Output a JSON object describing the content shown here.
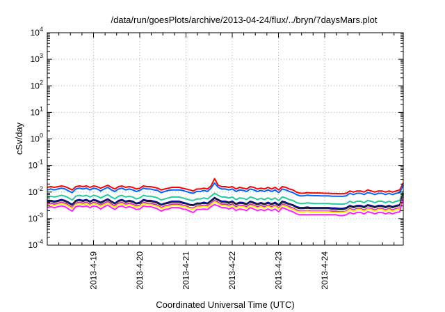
{
  "chart_data": {
    "type": "line",
    "title": "/data/run/goesPlots/archive/2013-04-24/flux/../bryn/7daysMars.plot",
    "xlabel": "Coordinated Universal Time (UTC)",
    "ylabel": "cSv/day",
    "yscale": "log",
    "ylim": [
      0.0001,
      10000
    ],
    "y_ticks": [
      {
        "base": "10",
        "exp": "-4"
      },
      {
        "base": "10",
        "exp": "-3"
      },
      {
        "base": "10",
        "exp": "-2"
      },
      {
        "base": "10",
        "exp": "-1"
      },
      {
        "base": "10",
        "exp": "0"
      },
      {
        "base": "10",
        "exp": "1"
      },
      {
        "base": "10",
        "exp": "2"
      },
      {
        "base": "10",
        "exp": "3"
      },
      {
        "base": "10",
        "exp": "4"
      }
    ],
    "xlim_days": [
      0,
      7.7
    ],
    "x_ticks": [
      {
        "label": "2013-4-19",
        "day": 1
      },
      {
        "label": "2013-4-20",
        "day": 2
      },
      {
        "label": "2013-4-21",
        "day": 3
      },
      {
        "label": "2013-4-22",
        "day": 4
      },
      {
        "label": "2013-4-23",
        "day": 5
      },
      {
        "label": "2013-4-24",
        "day": 6
      }
    ],
    "grid": true,
    "series": [
      {
        "color": "#ff0000",
        "values": [
          0.015,
          0.016,
          0.015,
          0.016,
          0.017,
          0.016,
          0.014,
          0.012,
          0.016,
          0.017,
          0.016,
          0.017,
          0.015,
          0.017,
          0.016,
          0.014,
          0.016,
          0.018,
          0.015,
          0.013,
          0.016,
          0.017,
          0.015,
          0.016,
          0.015,
          0.013,
          0.014,
          0.017,
          0.016,
          0.016,
          0.015,
          0.014,
          0.012,
          0.013,
          0.014,
          0.015,
          0.015,
          0.015,
          0.014,
          0.013,
          0.012,
          0.011,
          0.013,
          0.013,
          0.014,
          0.013,
          0.017,
          0.032,
          0.018,
          0.016,
          0.016,
          0.015,
          0.016,
          0.013,
          0.015,
          0.014,
          0.013,
          0.016,
          0.015,
          0.013,
          0.014,
          0.013,
          0.015,
          0.013,
          0.015,
          0.012,
          0.016,
          0.015,
          0.013,
          0.012,
          0.01,
          0.009,
          0.009,
          0.0095,
          0.0093,
          0.0092,
          0.0092,
          0.0091,
          0.009,
          0.009,
          0.0088,
          0.0088,
          0.0087,
          0.0087,
          0.009,
          0.011,
          0.01,
          0.011,
          0.011,
          0.01,
          0.012,
          0.011,
          0.01,
          0.011,
          0.011,
          0.01,
          0.011,
          0.01,
          0.011,
          0.012,
          0.022
        ]
      },
      {
        "color": "#0066ff",
        "values": [
          0.012,
          0.013,
          0.012,
          0.013,
          0.014,
          0.013,
          0.011,
          0.0095,
          0.013,
          0.014,
          0.013,
          0.014,
          0.012,
          0.014,
          0.013,
          0.011,
          0.013,
          0.015,
          0.012,
          0.0105,
          0.013,
          0.014,
          0.012,
          0.013,
          0.012,
          0.0105,
          0.0115,
          0.014,
          0.013,
          0.013,
          0.012,
          0.0115,
          0.0095,
          0.0105,
          0.0115,
          0.012,
          0.012,
          0.012,
          0.0115,
          0.0105,
          0.0095,
          0.009,
          0.0105,
          0.0105,
          0.0115,
          0.0105,
          0.014,
          0.022,
          0.015,
          0.013,
          0.013,
          0.012,
          0.013,
          0.0105,
          0.012,
          0.0115,
          0.0105,
          0.013,
          0.012,
          0.0105,
          0.0115,
          0.0105,
          0.012,
          0.0105,
          0.012,
          0.0095,
          0.013,
          0.012,
          0.0105,
          0.0095,
          0.008,
          0.0072,
          0.0072,
          0.0076,
          0.0074,
          0.0073,
          0.0073,
          0.0072,
          0.0072,
          0.0072,
          0.007,
          0.007,
          0.0069,
          0.0069,
          0.0072,
          0.009,
          0.008,
          0.009,
          0.009,
          0.008,
          0.0095,
          0.009,
          0.008,
          0.009,
          0.009,
          0.008,
          0.009,
          0.008,
          0.009,
          0.0095,
          0.018
        ]
      },
      {
        "color": "#22cc99",
        "values": [
          0.0065,
          0.007,
          0.0065,
          0.007,
          0.0075,
          0.007,
          0.006,
          0.005,
          0.007,
          0.0075,
          0.007,
          0.0075,
          0.0065,
          0.0075,
          0.007,
          0.006,
          0.007,
          0.008,
          0.0065,
          0.0055,
          0.007,
          0.0075,
          0.0065,
          0.007,
          0.0065,
          0.0055,
          0.006,
          0.0075,
          0.007,
          0.007,
          0.0065,
          0.006,
          0.005,
          0.0055,
          0.006,
          0.0065,
          0.0065,
          0.0065,
          0.006,
          0.0055,
          0.005,
          0.0048,
          0.0055,
          0.0055,
          0.006,
          0.0055,
          0.007,
          0.009,
          0.0075,
          0.0065,
          0.0065,
          0.006,
          0.0065,
          0.0052,
          0.006,
          0.0058,
          0.0052,
          0.0065,
          0.006,
          0.0052,
          0.0058,
          0.0052,
          0.006,
          0.0052,
          0.006,
          0.0048,
          0.0065,
          0.006,
          0.0052,
          0.0048,
          0.004,
          0.0037,
          0.0037,
          0.0039,
          0.0038,
          0.0037,
          0.0037,
          0.0037,
          0.0037,
          0.0037,
          0.0036,
          0.0036,
          0.0035,
          0.0035,
          0.0037,
          0.0045,
          0.004,
          0.0045,
          0.0045,
          0.004,
          0.0048,
          0.0045,
          0.004,
          0.0045,
          0.0045,
          0.004,
          0.0045,
          0.004,
          0.0045,
          0.0048,
          0.011
        ]
      },
      {
        "color": "#0000bb",
        "values": [
          0.0045,
          0.0048,
          0.0045,
          0.0048,
          0.0052,
          0.0048,
          0.0041,
          0.0034,
          0.0048,
          0.0052,
          0.0048,
          0.0052,
          0.0045,
          0.0052,
          0.0048,
          0.0041,
          0.0048,
          0.0055,
          0.0045,
          0.0038,
          0.0048,
          0.0052,
          0.0045,
          0.0048,
          0.0045,
          0.0038,
          0.0041,
          0.0052,
          0.0048,
          0.0048,
          0.0045,
          0.0041,
          0.0034,
          0.0038,
          0.0041,
          0.0045,
          0.0045,
          0.0045,
          0.0041,
          0.0038,
          0.0034,
          0.0033,
          0.0038,
          0.0038,
          0.0041,
          0.0038,
          0.0048,
          0.0062,
          0.0052,
          0.0045,
          0.0045,
          0.0041,
          0.0045,
          0.0036,
          0.0041,
          0.004,
          0.0036,
          0.0045,
          0.0041,
          0.0036,
          0.004,
          0.0036,
          0.0041,
          0.0036,
          0.0041,
          0.0033,
          0.0045,
          0.0041,
          0.0036,
          0.0033,
          0.0028,
          0.0026,
          0.0026,
          0.0027,
          0.0026,
          0.0026,
          0.0026,
          0.0026,
          0.0026,
          0.0026,
          0.0025,
          0.0025,
          0.0024,
          0.0024,
          0.0026,
          0.0031,
          0.0028,
          0.0031,
          0.0031,
          0.0028,
          0.0033,
          0.0031,
          0.0028,
          0.0031,
          0.0031,
          0.0028,
          0.0031,
          0.0028,
          0.0031,
          0.0033,
          0.009
        ]
      },
      {
        "color": "#222222",
        "values": [
          0.0042,
          0.0045,
          0.0042,
          0.0045,
          0.0049,
          0.0045,
          0.0038,
          0.0032,
          0.0045,
          0.0049,
          0.0045,
          0.0049,
          0.0042,
          0.0049,
          0.0045,
          0.0038,
          0.0045,
          0.0052,
          0.0042,
          0.0036,
          0.0045,
          0.0049,
          0.0042,
          0.0045,
          0.0042,
          0.0036,
          0.0038,
          0.0049,
          0.0045,
          0.0045,
          0.0042,
          0.0038,
          0.0032,
          0.0036,
          0.0038,
          0.0042,
          0.0042,
          0.0042,
          0.0038,
          0.0036,
          0.0032,
          0.0031,
          0.0036,
          0.0036,
          0.0038,
          0.0036,
          0.0045,
          0.0058,
          0.0049,
          0.0042,
          0.0042,
          0.0038,
          0.0042,
          0.0034,
          0.0038,
          0.0037,
          0.0034,
          0.0042,
          0.0038,
          0.0034,
          0.0037,
          0.0034,
          0.0038,
          0.0034,
          0.0038,
          0.0031,
          0.0042,
          0.0038,
          0.0034,
          0.0031,
          0.0026,
          0.0024,
          0.0024,
          0.0025,
          0.0024,
          0.0024,
          0.0024,
          0.0024,
          0.0024,
          0.0024,
          0.0023,
          0.0023,
          0.0022,
          0.0022,
          0.0024,
          0.0029,
          0.0026,
          0.0029,
          0.0029,
          0.0026,
          0.0031,
          0.0029,
          0.0026,
          0.0029,
          0.0029,
          0.0026,
          0.0029,
          0.0026,
          0.0029,
          0.0031,
          0.0085
        ]
      },
      {
        "color": "#cc22cc",
        "values": [
          0.0035,
          0.0038,
          0.0035,
          0.0038,
          0.0041,
          0.0038,
          0.0032,
          0.0026,
          0.0038,
          0.0041,
          0.0038,
          0.0041,
          0.0035,
          0.0041,
          0.0038,
          0.0032,
          0.0038,
          0.0044,
          0.0035,
          0.003,
          0.0038,
          0.0041,
          0.0035,
          0.0038,
          0.0035,
          0.003,
          0.0032,
          0.0041,
          0.0038,
          0.0038,
          0.0035,
          0.0032,
          0.0026,
          0.003,
          0.0032,
          0.0035,
          0.0035,
          0.0035,
          0.0032,
          0.003,
          0.0026,
          0.0025,
          0.003,
          0.003,
          0.0032,
          0.003,
          0.0038,
          0.0048,
          0.0041,
          0.0035,
          0.0035,
          0.0032,
          0.0035,
          0.0028,
          0.0032,
          0.0031,
          0.0028,
          0.0035,
          0.0032,
          0.0028,
          0.0031,
          0.0028,
          0.0032,
          0.0028,
          0.0032,
          0.0025,
          0.0035,
          0.0032,
          0.0028,
          0.0025,
          0.0021,
          0.0019,
          0.0019,
          0.002,
          0.0019,
          0.0019,
          0.0019,
          0.0019,
          0.0019,
          0.0019,
          0.0019,
          0.0019,
          0.0018,
          0.0018,
          0.0019,
          0.0024,
          0.0021,
          0.0024,
          0.0024,
          0.0021,
          0.0025,
          0.0024,
          0.0021,
          0.0024,
          0.0024,
          0.0021,
          0.0024,
          0.0021,
          0.0024,
          0.0025,
          0.0075
        ]
      },
      {
        "color": "#ffee00",
        "values": [
          0.0031,
          0.0034,
          0.0031,
          0.0034,
          0.0037,
          0.0034,
          0.0029,
          0.0024,
          0.0034,
          0.0037,
          0.0034,
          0.0037,
          0.0031,
          0.0037,
          0.0034,
          0.0029,
          0.0034,
          0.0039,
          0.0031,
          0.0027,
          0.0034,
          0.0037,
          0.0031,
          0.0034,
          0.0031,
          0.0027,
          0.0029,
          0.0037,
          0.0034,
          0.0034,
          0.0031,
          0.0029,
          0.0024,
          0.0027,
          0.0029,
          0.0031,
          0.0031,
          0.0031,
          0.0029,
          0.0027,
          0.0024,
          0.0023,
          0.0027,
          0.0027,
          0.0029,
          0.0027,
          0.0034,
          0.0043,
          0.0037,
          0.0031,
          0.0031,
          0.0029,
          0.0031,
          0.0025,
          0.0029,
          0.0028,
          0.0025,
          0.0031,
          0.0029,
          0.0025,
          0.0028,
          0.0025,
          0.0029,
          0.0025,
          0.0029,
          0.0023,
          0.0031,
          0.0029,
          0.0025,
          0.0023,
          0.0019,
          0.0018,
          0.0018,
          0.0019,
          0.0018,
          0.0018,
          0.0018,
          0.0018,
          0.0018,
          0.0018,
          0.0017,
          0.0017,
          0.0017,
          0.0017,
          0.0018,
          0.0022,
          0.0019,
          0.0022,
          0.0022,
          0.0019,
          0.0023,
          0.0022,
          0.0019,
          0.0022,
          0.0022,
          0.0019,
          0.0022,
          0.0019,
          0.0022,
          0.0023,
          0.007
        ]
      },
      {
        "color": "#ff22ff",
        "values": [
          0.0026,
          0.0028,
          0.0026,
          0.0028,
          0.003,
          0.0028,
          0.0023,
          0.0019,
          0.0028,
          0.003,
          0.0028,
          0.003,
          0.0026,
          0.003,
          0.0028,
          0.0023,
          0.0028,
          0.0032,
          0.0026,
          0.0022,
          0.0028,
          0.003,
          0.0026,
          0.0028,
          0.0026,
          0.0022,
          0.0023,
          0.003,
          0.0028,
          0.0028,
          0.0026,
          0.0023,
          0.0019,
          0.0022,
          0.0023,
          0.0026,
          0.0026,
          0.0026,
          0.0023,
          0.0022,
          0.0019,
          0.0017,
          0.0022,
          0.0022,
          0.0023,
          0.0022,
          0.0028,
          0.0034,
          0.003,
          0.0026,
          0.0026,
          0.0023,
          0.0026,
          0.002,
          0.0023,
          0.0022,
          0.002,
          0.0026,
          0.0023,
          0.002,
          0.0022,
          0.002,
          0.0023,
          0.002,
          0.0023,
          0.0018,
          0.0026,
          0.0023,
          0.002,
          0.0018,
          0.0015,
          0.0014,
          0.0014,
          0.0014,
          0.0014,
          0.0014,
          0.0014,
          0.0014,
          0.0014,
          0.0014,
          0.0014,
          0.0014,
          0.0013,
          0.0013,
          0.0014,
          0.0017,
          0.0015,
          0.0017,
          0.0017,
          0.0015,
          0.0018,
          0.0017,
          0.0015,
          0.0017,
          0.0017,
          0.0015,
          0.0017,
          0.0015,
          0.0017,
          0.0018,
          0.0065
        ]
      }
    ]
  }
}
